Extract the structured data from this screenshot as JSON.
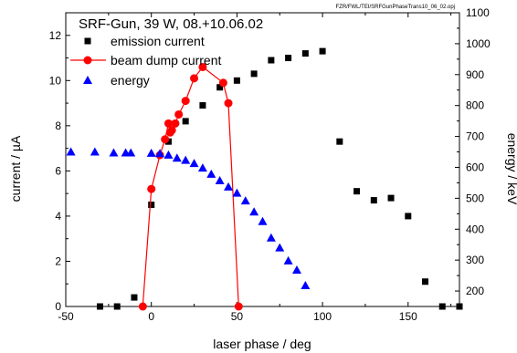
{
  "file_name": "FZR/FWL/TEI/SRFGunPhaseTrans10_06_02.opj",
  "chart_data": {
    "type": "scatter",
    "title": "SRF-Gun, 39 W, 08.+10.06.02",
    "xlabel": "laser phase / deg",
    "ylabel": "current / µA",
    "y2label": "energy / keV",
    "xlim": [
      -50,
      180
    ],
    "ylim": [
      0,
      13
    ],
    "y2lim": [
      150,
      1100
    ],
    "xticks": [
      -50,
      0,
      50,
      100,
      150
    ],
    "xtick_labels": [
      "-50",
      "0",
      "50",
      "100",
      "150"
    ],
    "yticks": [
      0,
      2,
      4,
      6,
      8,
      10,
      12
    ],
    "ytick_labels": [
      "0",
      "2",
      "4",
      "6",
      "8",
      "10",
      "12"
    ],
    "y2ticks": [
      200,
      300,
      400,
      500,
      600,
      700,
      800,
      900,
      1000,
      1100
    ],
    "y2tick_labels": [
      "200",
      "300",
      "400",
      "500",
      "600",
      "700",
      "800",
      "900",
      "1000",
      "1100"
    ],
    "grid": false,
    "legend_position": "top-left",
    "series": [
      {
        "name": "emission current",
        "axis": "left",
        "marker": "square",
        "color": "#000000",
        "line": false,
        "points": [
          [
            -30,
            0
          ],
          [
            -20,
            0
          ],
          [
            -10,
            0.4
          ],
          [
            0,
            4.5
          ],
          [
            10,
            7.3
          ],
          [
            20,
            8.2
          ],
          [
            30,
            8.9
          ],
          [
            40,
            9.7
          ],
          [
            50,
            10.0
          ],
          [
            60,
            10.3
          ],
          [
            70,
            10.9
          ],
          [
            80,
            11.0
          ],
          [
            90,
            11.2
          ],
          [
            100,
            11.3
          ],
          [
            110,
            7.3
          ],
          [
            120,
            5.1
          ],
          [
            130,
            4.7
          ],
          [
            140,
            4.8
          ],
          [
            150,
            4.0
          ],
          [
            160,
            1.1
          ],
          [
            170,
            0
          ],
          [
            180,
            0
          ]
        ]
      },
      {
        "name": "beam dump current",
        "axis": "left",
        "marker": "circle",
        "color": "#ff0000",
        "line": true,
        "points": [
          [
            -5,
            0
          ],
          [
            0,
            5.2
          ],
          [
            5,
            6.7
          ],
          [
            8,
            7.4
          ],
          [
            10,
            8.1
          ],
          [
            11,
            7.7
          ],
          [
            12,
            7.8
          ],
          [
            14,
            8.1
          ],
          [
            16,
            8.5
          ],
          [
            20,
            9.1
          ],
          [
            25,
            10.1
          ],
          [
            30,
            10.6
          ],
          [
            42,
            9.9
          ],
          [
            45,
            9.0
          ],
          [
            51,
            0
          ]
        ]
      },
      {
        "name": "energy",
        "axis": "right",
        "marker": "triangle",
        "color": "#0000ff",
        "line": false,
        "points": [
          [
            -47,
            650
          ],
          [
            -33,
            650
          ],
          [
            -22,
            647
          ],
          [
            -15,
            647
          ],
          [
            -12,
            647
          ],
          [
            0,
            646
          ],
          [
            5,
            645
          ],
          [
            10,
            640
          ],
          [
            15,
            630
          ],
          [
            20,
            623
          ],
          [
            25,
            613
          ],
          [
            30,
            598
          ],
          [
            35,
            578
          ],
          [
            40,
            557
          ],
          [
            45,
            537
          ],
          [
            50,
            517
          ],
          [
            55,
            492
          ],
          [
            60,
            456
          ],
          [
            65,
            425
          ],
          [
            70,
            372
          ],
          [
            75,
            340
          ],
          [
            80,
            298
          ],
          [
            85,
            268
          ],
          [
            90,
            218
          ]
        ]
      }
    ]
  }
}
